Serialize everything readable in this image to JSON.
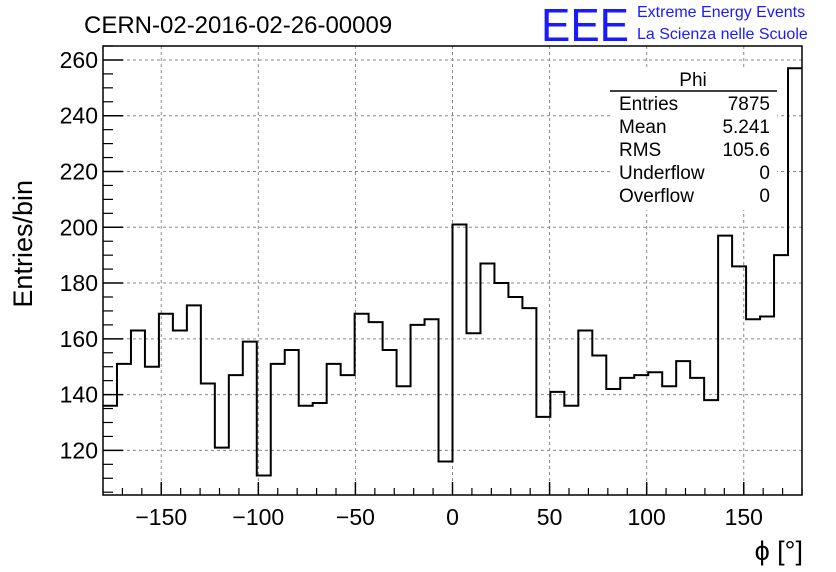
{
  "chart_data": {
    "type": "histogram",
    "title": "CERN-02-2016-02-26-00009",
    "xlabel": "ϕ [°]",
    "ylabel": "Entries/bin",
    "xlim": [
      -180,
      180
    ],
    "ylim": [
      104,
      265
    ],
    "grid": true,
    "bin_width": 7.2,
    "x_ticks": [
      -150,
      -100,
      -50,
      0,
      50,
      100,
      150
    ],
    "x_tick_labels": [
      "−150",
      "−100",
      "−50",
      "0",
      "50",
      "100",
      "150"
    ],
    "y_ticks": [
      120,
      140,
      160,
      180,
      200,
      220,
      240,
      260
    ],
    "y_tick_labels": [
      "120",
      "140",
      "160",
      "180",
      "200",
      "220",
      "240",
      "260"
    ],
    "bin_contents": [
      136,
      151,
      163,
      150,
      169,
      163,
      172,
      144,
      121,
      147,
      159,
      111,
      151,
      156,
      136,
      137,
      151,
      147,
      169,
      166,
      156,
      143,
      165,
      167,
      116,
      201,
      162,
      187,
      180,
      175,
      171,
      132,
      141,
      136,
      163,
      154,
      142,
      146,
      147,
      148,
      143,
      152,
      146,
      138,
      197,
      186,
      167,
      168,
      190,
      257
    ]
  },
  "stats_box": {
    "name": "Phi",
    "rows": [
      {
        "label": "Entries",
        "value": "7875"
      },
      {
        "label": "Mean",
        "value": "5.241"
      },
      {
        "label": "RMS",
        "value": "105.6"
      },
      {
        "label": "Underflow",
        "value": "0"
      },
      {
        "label": "Overflow",
        "value": "0"
      }
    ]
  },
  "logo": {
    "mark": "EEE",
    "line1": "Extreme Energy Events",
    "line2": "La Scienza nelle Scuole"
  },
  "colors": {
    "histogram": "#000000",
    "grid": "#8a8a8a",
    "logo": "#1a1aff"
  }
}
